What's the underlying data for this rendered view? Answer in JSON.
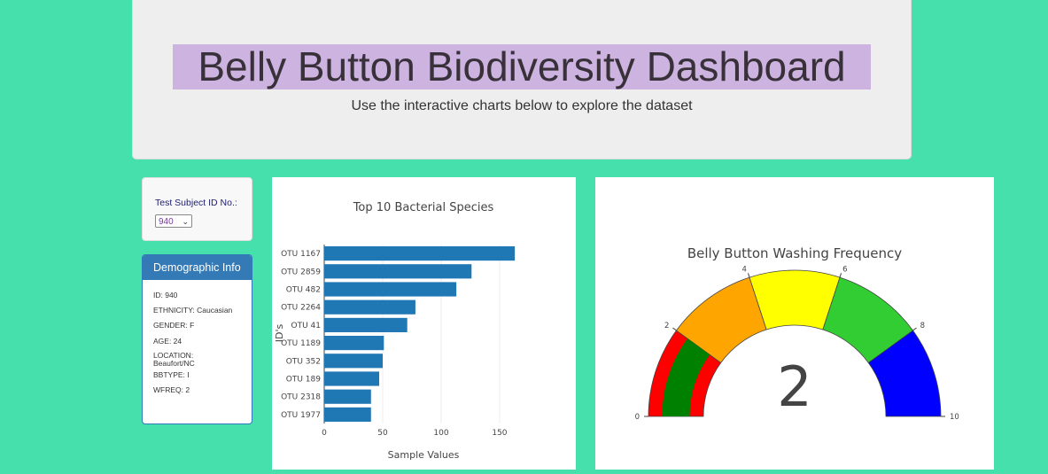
{
  "header": {
    "title": "Belly Button Biodiversity Dashboard",
    "subtitle": "Use the interactive charts below to explore the dataset"
  },
  "selector": {
    "label": "Test Subject ID No.:",
    "selected": "940"
  },
  "demographics": {
    "heading": "Demographic Info",
    "rows": [
      "ID: 940",
      "ETHNICITY: Caucasian",
      "GENDER: F",
      "AGE: 24",
      "LOCATION: Beaufort/NC",
      "BBTYPE: I",
      "WFREQ: 2"
    ]
  },
  "chart_data": [
    {
      "type": "bar",
      "orientation": "horizontal",
      "title": "Top 10 Bacterial Species",
      "xlabel": "Sample Values",
      "ylabel": "ID's",
      "categories": [
        "OTU 1167",
        "OTU 2859",
        "OTU 482",
        "OTU 2264",
        "OTU 41",
        "OTU 1189",
        "OTU 352",
        "OTU 189",
        "OTU 2318",
        "OTU 1977"
      ],
      "values": [
        163,
        126,
        113,
        78,
        71,
        51,
        50,
        47,
        40,
        40
      ],
      "xlim": [
        0,
        172
      ],
      "xticks": [
        0,
        50,
        100,
        150
      ],
      "color": "#1f77b4",
      "grid": true
    },
    {
      "type": "gauge",
      "title": "Belly Button Washing Frequency",
      "value": 2,
      "range": [
        0,
        10
      ],
      "ticks": [
        0,
        2,
        4,
        6,
        8,
        10
      ],
      "steps": [
        {
          "range": [
            0,
            2
          ],
          "color": "#ff0000"
        },
        {
          "range": [
            2,
            4
          ],
          "color": "#ffa500"
        },
        {
          "range": [
            4,
            6
          ],
          "color": "#ffff00"
        },
        {
          "range": [
            6,
            8
          ],
          "color": "#32cd32"
        },
        {
          "range": [
            8,
            10
          ],
          "color": "#0000ff"
        }
      ],
      "bar_color": "#008000"
    }
  ]
}
